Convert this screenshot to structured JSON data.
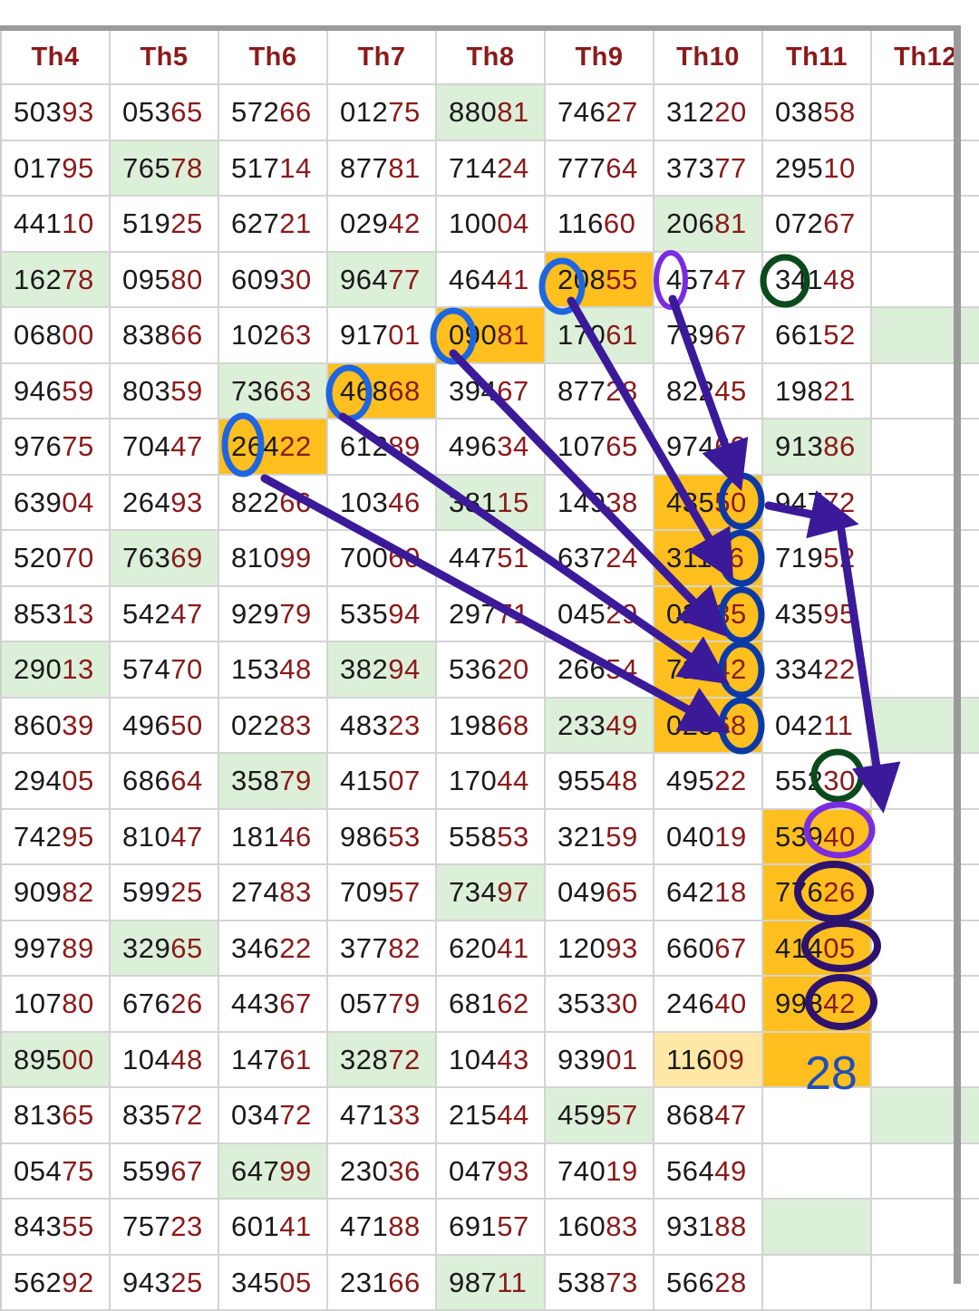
{
  "colors": {
    "header_text": "#8b1a1a",
    "digits_head": "#1a1a1a",
    "digits_tail": "#8b1a1a",
    "cell_green": "#dcefd8",
    "cell_orange": "#ffbf1f",
    "cell_pale": "#ffe8a6",
    "arrow": "#3b1a9a",
    "circle_blue": "#1e66e0",
    "circle_navy": "#0b3aa8",
    "circle_green": "#0b4a1a",
    "circle_purple": "#7a2de0",
    "circle_dark": "#2e1270"
  },
  "headers": [
    "Th4",
    "Th5",
    "Th6",
    "Th7",
    "Th8",
    "Th9",
    "Th10",
    "Th11",
    "Th12"
  ],
  "rows": [
    [
      "50393",
      "05365",
      "57266",
      "01275",
      "88081",
      "74627",
      "31220",
      "03858",
      ""
    ],
    [
      "01795",
      "76578",
      "51714",
      "87781",
      "71424",
      "77764",
      "37377",
      "29510",
      ""
    ],
    [
      "44110",
      "51925",
      "62721",
      "02942",
      "10004",
      "11660",
      "20681",
      "07267",
      ""
    ],
    [
      "16278",
      "09580",
      "60930",
      "96477",
      "46441",
      "20855",
      "45747",
      "34148",
      ""
    ],
    [
      "06800",
      "83866",
      "10263",
      "91701",
      "09081",
      "17061",
      "78967",
      "66152",
      ""
    ],
    [
      "94659",
      "80359",
      "73663",
      "46868",
      "39467",
      "87728",
      "82245",
      "19821",
      ""
    ],
    [
      "97675",
      "70447",
      "26422",
      "61289",
      "49634",
      "10765",
      "97469",
      "91386",
      ""
    ],
    [
      "63904",
      "26493",
      "82266",
      "10346",
      "38115",
      "14938",
      "43550",
      "94772",
      ""
    ],
    [
      "52070",
      "76369",
      "81099",
      "70060",
      "44751",
      "63724",
      "31156",
      "71952",
      ""
    ],
    [
      "85313",
      "54247",
      "92979",
      "53594",
      "29771",
      "04529",
      "02035",
      "43595",
      ""
    ],
    [
      "29013",
      "57470",
      "15348",
      "38294",
      "53620",
      "26654",
      "72742",
      "33422",
      ""
    ],
    [
      "86039",
      "49650",
      "02283",
      "48323",
      "19868",
      "23349",
      "02568",
      "04211",
      ""
    ],
    [
      "29405",
      "68664",
      "35879",
      "41507",
      "17044",
      "95548",
      "49522",
      "55230",
      ""
    ],
    [
      "74295",
      "81047",
      "18146",
      "98653",
      "55853",
      "32159",
      "04019",
      "53940",
      ""
    ],
    [
      "90982",
      "59925",
      "27483",
      "70957",
      "73497",
      "04965",
      "64218",
      "77626",
      ""
    ],
    [
      "99789",
      "32965",
      "34622",
      "37782",
      "62041",
      "12093",
      "66067",
      "41405",
      ""
    ],
    [
      "10780",
      "67626",
      "44367",
      "05779",
      "68162",
      "35330",
      "24640",
      "99842",
      ""
    ],
    [
      "89500",
      "10448",
      "14761",
      "32872",
      "10443",
      "93901",
      "11609",
      "",
      ""
    ],
    [
      "81365",
      "83572",
      "03472",
      "47133",
      "21544",
      "45957",
      "86847",
      "",
      ""
    ],
    [
      "05475",
      "55967",
      "64799",
      "23036",
      "04793",
      "74019",
      "56449",
      "",
      ""
    ],
    [
      "84355",
      "75723",
      "60141",
      "47188",
      "69157",
      "16083",
      "93188",
      "",
      ""
    ],
    [
      "56292",
      "94325",
      "34505",
      "23166",
      "98711",
      "53873",
      "56628",
      "",
      ""
    ]
  ],
  "highlights": {
    "green": [
      [
        0,
        4
      ],
      [
        1,
        1
      ],
      [
        2,
        6
      ],
      [
        3,
        0
      ],
      [
        3,
        3
      ],
      [
        4,
        5
      ],
      [
        4,
        8
      ],
      [
        5,
        2
      ],
      [
        6,
        7
      ],
      [
        7,
        4
      ],
      [
        8,
        1
      ],
      [
        10,
        0
      ],
      [
        10,
        3
      ],
      [
        11,
        5
      ],
      [
        11,
        8
      ],
      [
        12,
        2
      ],
      [
        14,
        4
      ],
      [
        15,
        1
      ],
      [
        17,
        0
      ],
      [
        17,
        3
      ],
      [
        18,
        5
      ],
      [
        18,
        8
      ],
      [
        19,
        2
      ],
      [
        20,
        7
      ],
      [
        21,
        4
      ]
    ],
    "orange": [
      [
        3,
        5
      ],
      [
        4,
        4
      ],
      [
        5,
        3
      ],
      [
        6,
        2
      ],
      [
        7,
        6
      ],
      [
        8,
        6
      ],
      [
        9,
        6
      ],
      [
        10,
        6
      ],
      [
        11,
        6
      ],
      [
        13,
        7
      ],
      [
        14,
        7
      ],
      [
        15,
        7
      ],
      [
        16,
        7
      ],
      [
        17,
        7
      ]
    ],
    "pale": [
      [
        17,
        6
      ]
    ]
  },
  "annotation_label": "28"
}
